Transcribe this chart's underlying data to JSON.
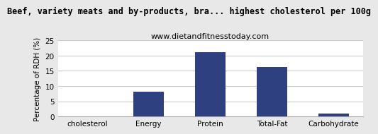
{
  "title": "Beef, variety meats and by-products, bra... highest cholesterol per 100g",
  "subtitle": "www.dietandfitnesstoday.com",
  "ylabel": "Percentage of RDH (%)",
  "categories": [
    "cholesterol",
    "Energy",
    "Protein",
    "Total-Fat",
    "Carbohydrate"
  ],
  "values": [
    0,
    8.1,
    21.0,
    16.2,
    1.0
  ],
  "bar_color": "#2e4080",
  "ylim": [
    0,
    25
  ],
  "yticks": [
    0,
    5,
    10,
    15,
    20,
    25
  ],
  "bg_color": "#e8e8e8",
  "plot_bg_color": "#ffffff",
  "grid_color": "#cccccc",
  "title_fontsize": 8.5,
  "subtitle_fontsize": 8,
  "ylabel_fontsize": 7.5,
  "tick_fontsize": 7.5
}
